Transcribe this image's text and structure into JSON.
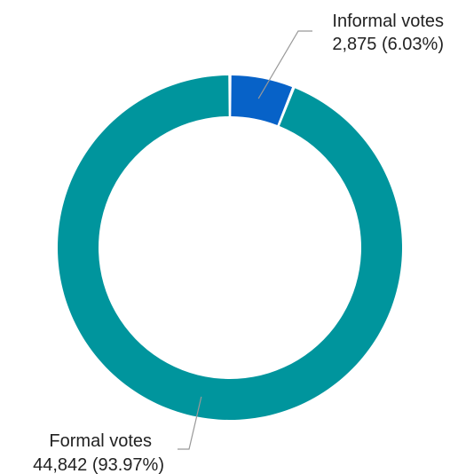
{
  "chart_data": {
    "type": "pie",
    "donut": true,
    "title": "",
    "slices": [
      {
        "name": "Informal votes",
        "value": 2875,
        "value_label": "2,875 (6.03%)",
        "percent": 6.03,
        "color": "#0762c8"
      },
      {
        "name": "Formal votes",
        "value": 44842,
        "value_label": "44,842 (93.97%)",
        "percent": 93.97,
        "color": "#00959d"
      }
    ],
    "legend": "none",
    "label_style": "callout"
  },
  "colors": {
    "leader_line": "#999999",
    "background": "#ffffff"
  }
}
